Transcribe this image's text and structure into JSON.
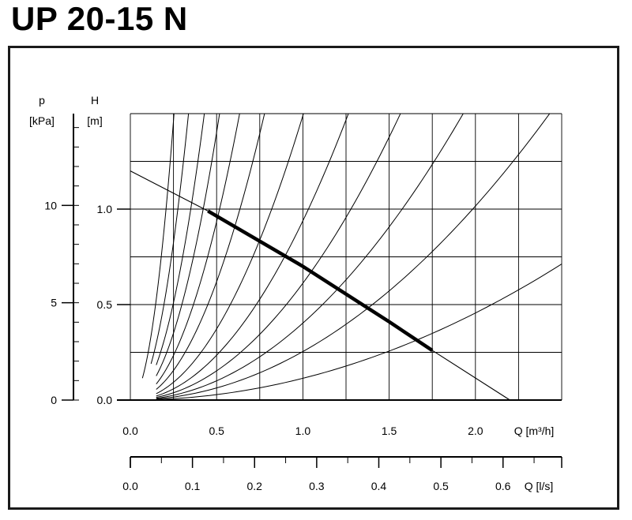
{
  "title": "UP 20-15 N",
  "chart_data": {
    "type": "line",
    "pressure_axis": {
      "label_line1": "p",
      "label_line2": "[kPa]",
      "ticks": [
        "10",
        "5",
        "0"
      ],
      "tick_values": [
        10,
        5,
        0
      ]
    },
    "head_axis": {
      "label_line1": "H",
      "label_line2": "[m]",
      "ticks": [
        "1.0",
        "0.5",
        "0.0"
      ],
      "tick_values": [
        1.0,
        0.5,
        0.0
      ],
      "ylim": [
        0,
        1.5
      ]
    },
    "flow_m3h_axis": {
      "label": "Q [m³/h]",
      "ticks": [
        "0.0",
        "0.5",
        "1.0",
        "1.5",
        "2.0"
      ],
      "tick_values": [
        0,
        0.5,
        1.0,
        1.5,
        2.0
      ],
      "xlim": [
        0,
        2.5
      ]
    },
    "flow_ls_axis": {
      "label": "Q [l/s]",
      "ticks": [
        "0.0",
        "0.1",
        "0.2",
        "0.3",
        "0.4",
        "0.5",
        "0.6"
      ],
      "tick_values": [
        0,
        0.1,
        0.2,
        0.3,
        0.4,
        0.5,
        0.6
      ],
      "xlim": [
        0,
        0.6944
      ]
    },
    "grid": true,
    "series": [
      {
        "role": "pump-curve",
        "x": [
          0.0,
          0.45,
          1.0,
          1.5,
          1.75,
          2.2
        ],
        "y": [
          1.2,
          0.99,
          0.7,
          0.41,
          0.26,
          0.0
        ]
      },
      {
        "role": "operating-range",
        "x": [
          0.45,
          1.0,
          1.5,
          1.75
        ],
        "y": [
          0.99,
          0.7,
          0.41,
          0.26
        ]
      }
    ],
    "system_curves": [
      {
        "k": 23.4,
        "x_start": 0.07,
        "x_end": 0.253
      },
      {
        "k": 13.2,
        "x_start": 0.12,
        "x_end": 0.337
      },
      {
        "k": 8.16,
        "x_start": 0.15,
        "x_end": 0.429
      },
      {
        "k": 5.61,
        "x_start": 0.15,
        "x_end": 0.517
      },
      {
        "k": 3.74,
        "x_start": 0.15,
        "x_end": 0.633
      },
      {
        "k": 2.48,
        "x_start": 0.15,
        "x_end": 0.778
      },
      {
        "k": 1.49,
        "x_start": 0.15,
        "x_end": 1.003
      },
      {
        "k": 0.939,
        "x_start": 0.15,
        "x_end": 1.264
      },
      {
        "k": 0.612,
        "x_start": 0.15,
        "x_end": 1.566
      },
      {
        "k": 0.403,
        "x_start": 0.15,
        "x_end": 1.929
      },
      {
        "k": 0.254,
        "x_start": 0.15,
        "x_end": 2.43
      },
      {
        "k": 0.114,
        "x_start": 0.15,
        "x_end": 2.5
      }
    ]
  }
}
